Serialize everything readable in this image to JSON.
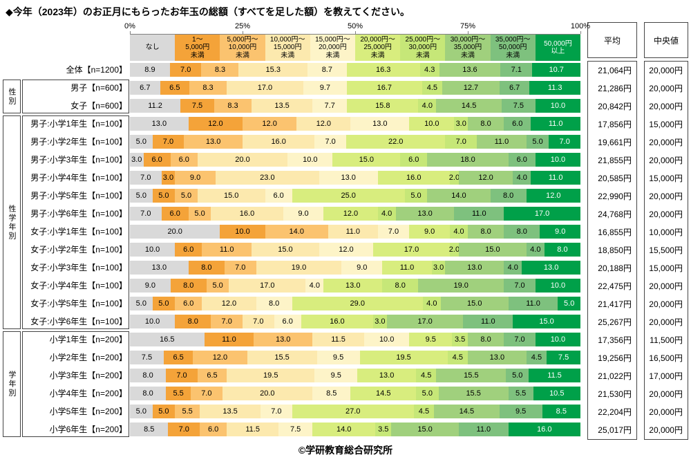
{
  "title": "◆今年（2023年）のお正月にもらったお年玉の総額（すべてを足した額）を教えてください。",
  "footer": "©学研教育総合研究所",
  "chart_data": {
    "type": "bar",
    "stacked": true,
    "orientation": "horizontal",
    "unit": "percent",
    "xlim": [
      0,
      100
    ],
    "axis_ticks": [
      "0%",
      "25%",
      "50%",
      "75%",
      "100%"
    ],
    "legend_position": "top",
    "categories": [
      "なし",
      "1～5,000円未満",
      "5,000円～10,000円未満",
      "10,000円～15,000円未満",
      "15,000円～20,000円未満",
      "20,000円～25,000円未満",
      "25,000円～30,000円未満",
      "30,000円～35,000円未満",
      "35,000円～50,000円未満",
      "50,000円以上"
    ],
    "category_label_lines": [
      [
        "なし"
      ],
      [
        "1～",
        "5,000円",
        "未満"
      ],
      [
        "5,000円～",
        "10,000円",
        "未満"
      ],
      [
        "10,000円～",
        "15,000円",
        "未満"
      ],
      [
        "15,000円～",
        "20,000円",
        "未満"
      ],
      [
        "20,000円～",
        "25,000円",
        "未満"
      ],
      [
        "25,000円～",
        "30,000円",
        "未満"
      ],
      [
        "30,000円～",
        "35,000円",
        "未満"
      ],
      [
        "35,000円～",
        "50,000円",
        "未満"
      ],
      [
        "50,000円",
        "以上"
      ]
    ],
    "category_colors": [
      "#D9D9D9",
      "#F4A339",
      "#FBC36F",
      "#FCE9AE",
      "#FDF4C8",
      "#D8ED7E",
      "#C6E778",
      "#A0D07D",
      "#7EC17E",
      "#00A049"
    ],
    "category_text_colors": [
      "#000000",
      "#000000",
      "#000000",
      "#000000",
      "#000000",
      "#000000",
      "#000000",
      "#000000",
      "#000000",
      "#FFFFFF"
    ],
    "summary_columns": {
      "average": "平均",
      "median": "中央値"
    },
    "groups": [
      {
        "label": "性別",
        "start": 1,
        "count": 2
      },
      {
        "label": "性学年別",
        "start": 3,
        "count": 12
      },
      {
        "label": "学年別",
        "start": 15,
        "count": 6
      }
    ],
    "rows": [
      {
        "label": "全体【n=1200】",
        "values": [
          8.9,
          7.0,
          8.3,
          15.3,
          8.7,
          16.3,
          4.3,
          13.6,
          7.1,
          10.7
        ],
        "average": "21,064円",
        "median": "20,000円"
      },
      {
        "label": "男子【n=600】",
        "values": [
          6.7,
          6.5,
          8.3,
          17.0,
          9.7,
          16.7,
          4.5,
          12.7,
          6.7,
          11.3
        ],
        "average": "21,286円",
        "median": "20,000円"
      },
      {
        "label": "女子【n=600】",
        "values": [
          11.2,
          7.5,
          8.3,
          13.5,
          7.7,
          15.8,
          4.0,
          14.5,
          7.5,
          10.0
        ],
        "average": "20,842円",
        "median": "20,000円"
      },
      {
        "label": "男子:小学1年生【n=100】",
        "values": [
          13.0,
          12.0,
          12.0,
          12.0,
          13.0,
          10.0,
          3.0,
          8.0,
          6.0,
          11.0
        ],
        "average": "17,856円",
        "median": "15,000円"
      },
      {
        "label": "男子:小学2年生【n=100】",
        "values": [
          5.0,
          7.0,
          13.0,
          16.0,
          7.0,
          22.0,
          7.0,
          11.0,
          5.0,
          7.0
        ],
        "average": "19,661円",
        "median": "20,000円"
      },
      {
        "label": "男子:小学3年生【n=100】",
        "values": [
          3.0,
          6.0,
          6.0,
          20.0,
          10.0,
          15.0,
          6.0,
          18.0,
          6.0,
          10.0
        ],
        "average": "21,855円",
        "median": "20,000円"
      },
      {
        "label": "男子:小学4年生【n=100】",
        "values": [
          7.0,
          3.0,
          9.0,
          23.0,
          13.0,
          16.0,
          2.0,
          12.0,
          4.0,
          11.0
        ],
        "average": "20,585円",
        "median": "15,000円"
      },
      {
        "label": "男子:小学5年生【n=100】",
        "values": [
          5.0,
          5.0,
          5.0,
          15.0,
          6.0,
          25.0,
          5.0,
          14.0,
          8.0,
          12.0
        ],
        "average": "22,990円",
        "median": "20,000円"
      },
      {
        "label": "男子:小学6年生【n=100】",
        "values": [
          7.0,
          6.0,
          5.0,
          16.0,
          9.0,
          12.0,
          4.0,
          13.0,
          11.0,
          17.0
        ],
        "average": "24,768円",
        "median": "20,000円"
      },
      {
        "label": "女子:小学1年生【n=100】",
        "values": [
          20.0,
          10.0,
          14.0,
          11.0,
          7.0,
          9.0,
          4.0,
          8.0,
          8.0,
          9.0
        ],
        "average": "16,855円",
        "median": "10,000円"
      },
      {
        "label": "女子:小学2年生【n=100】",
        "values": [
          10.0,
          6.0,
          11.0,
          15.0,
          12.0,
          17.0,
          2.0,
          15.0,
          4.0,
          8.0
        ],
        "average": "18,850円",
        "median": "15,500円"
      },
      {
        "label": "女子:小学3年生【n=100】",
        "values": [
          13.0,
          8.0,
          7.0,
          19.0,
          9.0,
          11.0,
          3.0,
          13.0,
          4.0,
          13.0
        ],
        "average": "20,188円",
        "median": "15,000円"
      },
      {
        "label": "女子:小学4年生【n=100】",
        "values": [
          9.0,
          8.0,
          5.0,
          17.0,
          4.0,
          13.0,
          8.0,
          19.0,
          7.0,
          10.0
        ],
        "average": "22,475円",
        "median": "20,000円"
      },
      {
        "label": "女子:小学5年生【n=100】",
        "values": [
          5.0,
          5.0,
          6.0,
          12.0,
          8.0,
          29.0,
          4.0,
          15.0,
          11.0,
          5.0
        ],
        "average": "21,417円",
        "median": "20,000円"
      },
      {
        "label": "女子:小学6年生【n=100】",
        "values": [
          10.0,
          8.0,
          7.0,
          7.0,
          6.0,
          16.0,
          3.0,
          17.0,
          11.0,
          15.0
        ],
        "average": "25,267円",
        "median": "20,000円"
      },
      {
        "label": "小学1年生【n=200】",
        "values": [
          16.5,
          11.0,
          13.0,
          11.5,
          10.0,
          9.5,
          3.5,
          8.0,
          7.0,
          10.0
        ],
        "average": "17,356円",
        "median": "11,500円"
      },
      {
        "label": "小学2年生【n=200】",
        "values": [
          7.5,
          6.5,
          12.0,
          15.5,
          9.5,
          19.5,
          4.5,
          13.0,
          4.5,
          7.5
        ],
        "average": "19,256円",
        "median": "16,500円"
      },
      {
        "label": "小学3年生【n=200】",
        "values": [
          8.0,
          7.0,
          6.5,
          19.5,
          9.5,
          13.0,
          4.5,
          15.5,
          5.0,
          11.5
        ],
        "average": "21,022円",
        "median": "17,000円"
      },
      {
        "label": "小学4年生【n=200】",
        "values": [
          8.0,
          5.5,
          7.0,
          20.0,
          8.5,
          14.5,
          5.0,
          15.5,
          5.5,
          10.5
        ],
        "average": "21,530円",
        "median": "20,000円"
      },
      {
        "label": "小学5年生【n=200】",
        "values": [
          5.0,
          5.0,
          5.5,
          13.5,
          7.0,
          27.0,
          4.5,
          14.5,
          9.5,
          8.5
        ],
        "average": "22,204円",
        "median": "20,000円"
      },
      {
        "label": "小学6年生【n=200】",
        "values": [
          8.5,
          7.0,
          6.0,
          11.5,
          7.5,
          14.0,
          3.5,
          15.0,
          11.0,
          16.0
        ],
        "average": "25,017円",
        "median": "20,000円"
      }
    ]
  }
}
